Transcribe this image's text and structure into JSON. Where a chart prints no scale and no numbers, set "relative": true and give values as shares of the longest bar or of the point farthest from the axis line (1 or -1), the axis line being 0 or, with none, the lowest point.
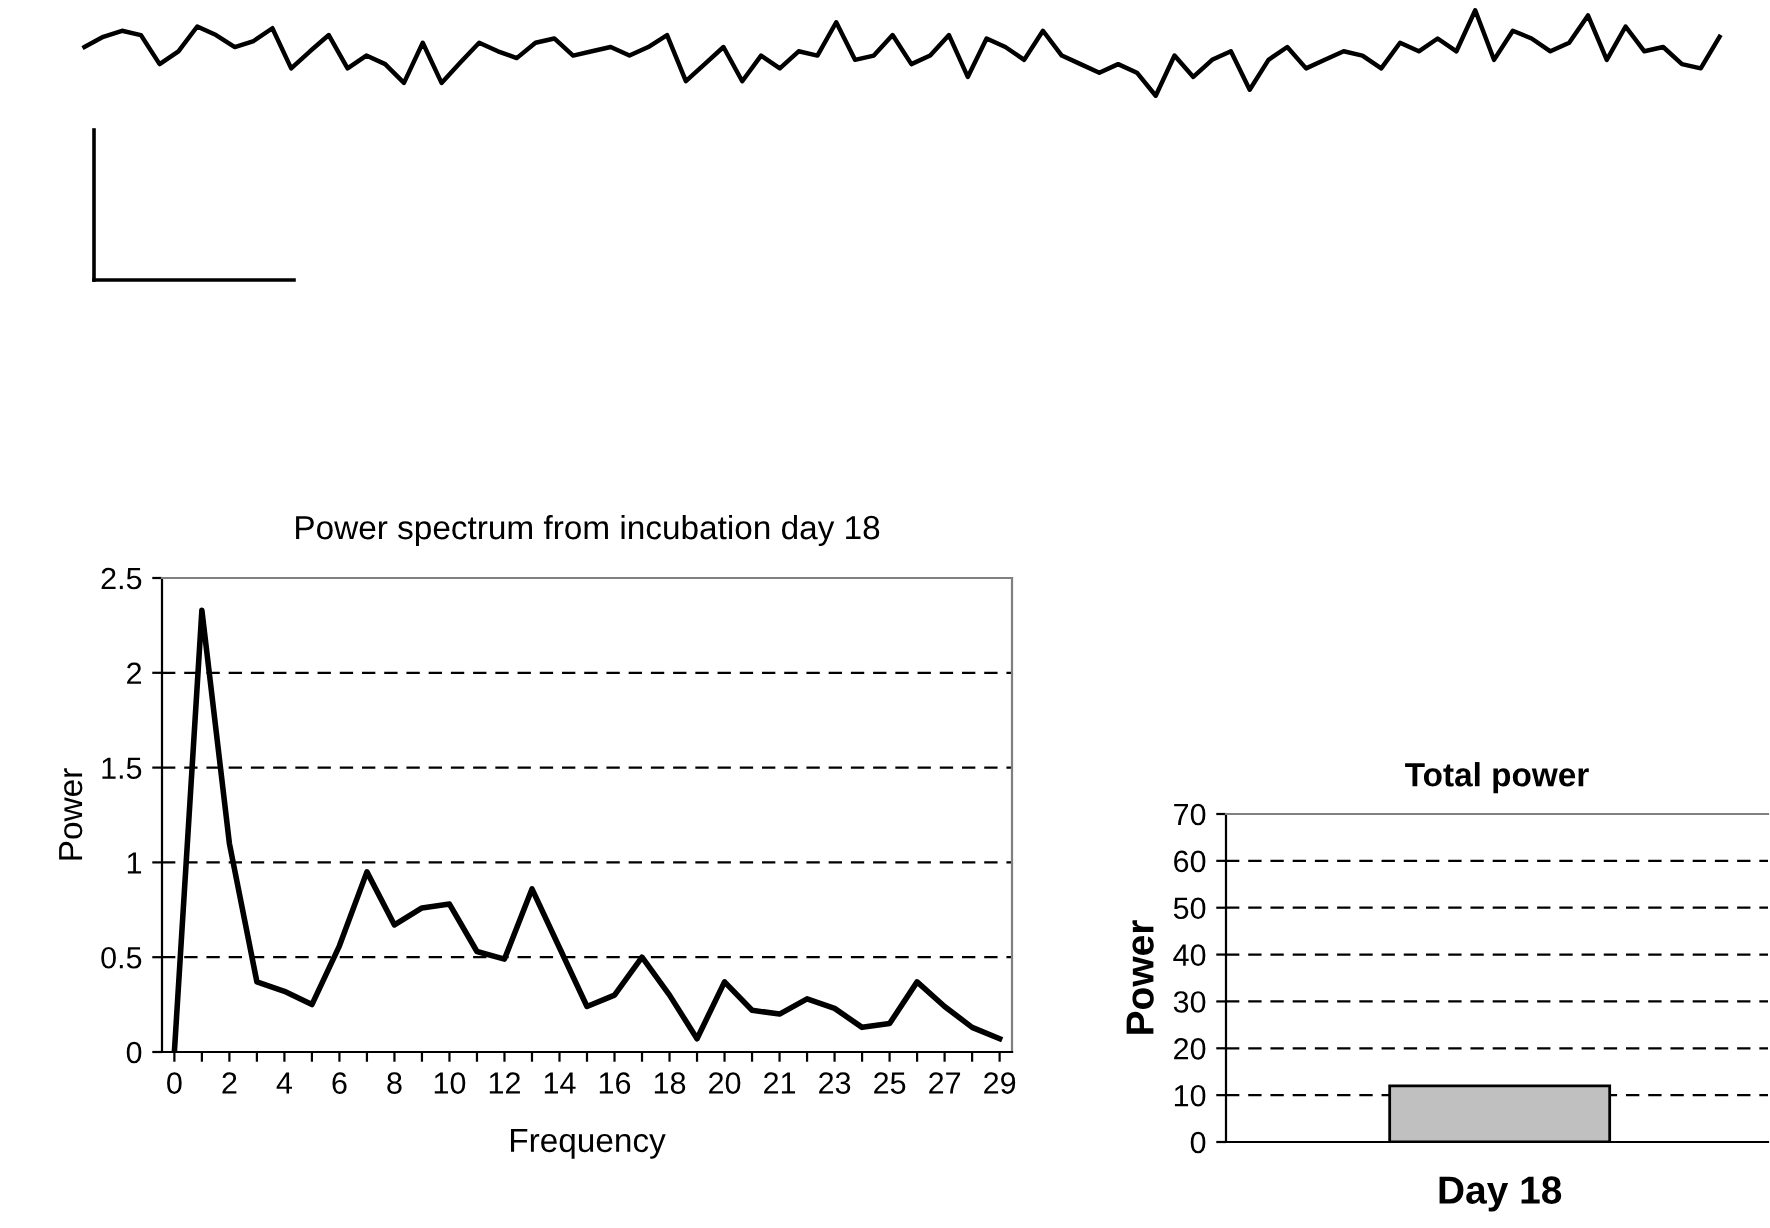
{
  "chart_data": [
    {
      "type": "line",
      "relative": true,
      "color": "#000000",
      "categories": [
        null,
        null,
        null,
        null,
        null,
        null,
        null,
        null,
        null,
        null,
        null,
        null,
        null,
        null,
        null,
        null,
        null,
        null,
        null,
        null,
        null,
        null,
        null,
        null,
        null,
        null,
        null,
        null,
        null,
        null,
        null,
        null,
        null,
        null,
        null,
        null,
        null,
        null,
        null,
        null,
        null,
        null,
        null,
        null,
        null,
        null,
        null,
        null,
        null,
        null,
        null,
        null,
        null,
        null,
        null,
        null,
        null,
        null,
        null,
        null,
        null,
        null,
        null,
        null,
        null,
        null,
        null,
        null,
        null,
        null,
        null,
        null,
        null,
        null,
        null,
        null,
        null,
        null,
        null,
        null,
        null,
        null,
        null,
        null,
        null,
        null,
        null,
        null
      ],
      "values": [
        0.57,
        0.69,
        0.76,
        0.71,
        0.37,
        0.52,
        0.81,
        0.71,
        0.57,
        0.64,
        0.79,
        0.32,
        0.52,
        0.71,
        0.32,
        0.47,
        0.37,
        0.15,
        0.62,
        0.15,
        0.39,
        0.62,
        0.52,
        0.44,
        0.62,
        0.67,
        0.47,
        0.52,
        0.57,
        0.47,
        0.57,
        0.71,
        0.17,
        0.37,
        0.57,
        0.17,
        0.47,
        0.32,
        0.52,
        0.47,
        0.86,
        0.42,
        0.47,
        0.71,
        0.37,
        0.47,
        0.71,
        0.22,
        0.67,
        0.57,
        0.42,
        0.76,
        0.47,
        0.37,
        0.27,
        0.37,
        0.27,
        0,
        0.47,
        0.22,
        0.42,
        0.52,
        0.07,
        0.42,
        0.57,
        0.32,
        0.42,
        0.52,
        0.47,
        0.32,
        0.62,
        0.52,
        0.67,
        0.52,
        1,
        0.42,
        0.76,
        0.67,
        0.52,
        0.62,
        0.94,
        0.42,
        0.81,
        0.52,
        0.57,
        0.37,
        0.32,
        0.69
      ]
    },
    {
      "type": "line",
      "title": "Power spectrum from incubation day 18",
      "xlabel": "Frequency",
      "ylabel": "Power",
      "color": "#000000",
      "categories": [
        "0",
        null,
        "2",
        null,
        "4",
        null,
        "6",
        null,
        "8",
        null,
        "10",
        null,
        "12",
        null,
        "14",
        null,
        "16",
        null,
        "18",
        null,
        "20",
        null,
        "21",
        null,
        "23",
        null,
        "25",
        null,
        "27",
        null,
        "29"
      ],
      "values": [
        0,
        2.33,
        1.1,
        0.37,
        0.32,
        0.25,
        0.56,
        0.95,
        0.67,
        0.76,
        0.78,
        0.53,
        0.49,
        0.86,
        0.55,
        0.24,
        0.3,
        0.5,
        0.3,
        0.07,
        0.37,
        0.22,
        0.2,
        0.28,
        0.23,
        0.13,
        0.15,
        0.37,
        0.24,
        0.13,
        0.07
      ],
      "ylim": [
        0,
        2.5
      ],
      "yticks": [
        0,
        0.5,
        1,
        1.5,
        2,
        2.5
      ],
      "grid": "y"
    },
    {
      "type": "bar",
      "title": "Total power",
      "ylabel": "Power",
      "categories": [
        "Day 18"
      ],
      "values": [
        12
      ],
      "color": "#c0c0c0",
      "ylim": [
        0,
        70
      ],
      "yticks": [
        0,
        10,
        20,
        30,
        40,
        50,
        60,
        70
      ],
      "grid": "y"
    }
  ]
}
